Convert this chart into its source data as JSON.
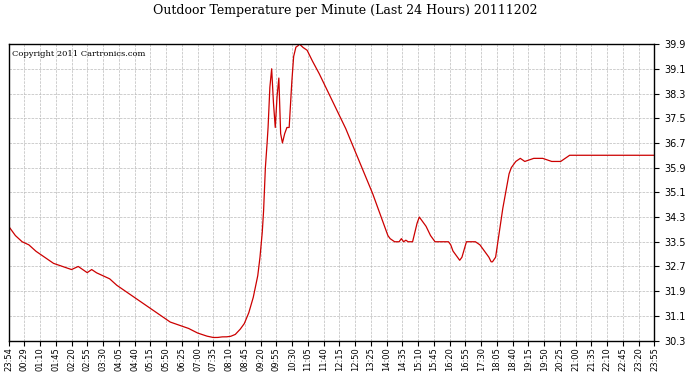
{
  "title": "Outdoor Temperature per Minute (Last 24 Hours) 20111202",
  "copyright_text": "Copyright 2011 Cartronics.com",
  "line_color": "#cc0000",
  "bg_color": "#ffffff",
  "grid_color": "#bbbbbb",
  "y_min": 30.3,
  "y_max": 39.9,
  "y_ticks": [
    30.3,
    31.1,
    31.9,
    32.7,
    33.5,
    34.3,
    35.1,
    35.9,
    36.7,
    37.5,
    38.3,
    39.1,
    39.9
  ],
  "x_tick_labels": [
    "23:54",
    "00:29",
    "01:10",
    "01:45",
    "02:20",
    "02:55",
    "03:30",
    "04:05",
    "04:40",
    "05:15",
    "05:50",
    "06:25",
    "07:00",
    "07:35",
    "08:10",
    "08:45",
    "09:20",
    "09:55",
    "10:30",
    "11:05",
    "11:40",
    "12:15",
    "12:50",
    "13:25",
    "14:00",
    "14:35",
    "15:10",
    "15:45",
    "16:20",
    "16:55",
    "17:30",
    "18:05",
    "18:40",
    "19:15",
    "19:50",
    "20:25",
    "21:00",
    "21:35",
    "22:10",
    "22:45",
    "23:20",
    "23:55"
  ],
  "key_points": [
    [
      0,
      34.0
    ],
    [
      15,
      33.7
    ],
    [
      30,
      33.5
    ],
    [
      45,
      33.4
    ],
    [
      60,
      33.2
    ],
    [
      80,
      33.0
    ],
    [
      100,
      32.8
    ],
    [
      120,
      32.7
    ],
    [
      140,
      32.6
    ],
    [
      155,
      32.7
    ],
    [
      165,
      32.6
    ],
    [
      175,
      32.5
    ],
    [
      185,
      32.6
    ],
    [
      195,
      32.5
    ],
    [
      210,
      32.4
    ],
    [
      225,
      32.3
    ],
    [
      240,
      32.1
    ],
    [
      260,
      31.9
    ],
    [
      280,
      31.7
    ],
    [
      300,
      31.5
    ],
    [
      320,
      31.3
    ],
    [
      340,
      31.1
    ],
    [
      360,
      30.9
    ],
    [
      380,
      30.8
    ],
    [
      400,
      30.7
    ],
    [
      420,
      30.55
    ],
    [
      440,
      30.45
    ],
    [
      455,
      30.4
    ],
    [
      465,
      30.4
    ],
    [
      475,
      30.42
    ],
    [
      485,
      30.42
    ],
    [
      495,
      30.44
    ],
    [
      505,
      30.5
    ],
    [
      515,
      30.65
    ],
    [
      525,
      30.85
    ],
    [
      535,
      31.2
    ],
    [
      545,
      31.7
    ],
    [
      555,
      32.4
    ],
    [
      560,
      33.0
    ],
    [
      565,
      33.8
    ],
    [
      568,
      34.5
    ],
    [
      572,
      35.9
    ],
    [
      575,
      36.5
    ],
    [
      578,
      37.2
    ],
    [
      582,
      38.5
    ],
    [
      586,
      39.1
    ],
    [
      590,
      38.0
    ],
    [
      594,
      37.2
    ],
    [
      598,
      38.2
    ],
    [
      602,
      38.8
    ],
    [
      606,
      37.0
    ],
    [
      610,
      36.7
    ],
    [
      615,
      37.0
    ],
    [
      620,
      37.2
    ],
    [
      625,
      37.2
    ],
    [
      630,
      38.5
    ],
    [
      635,
      39.5
    ],
    [
      640,
      39.8
    ],
    [
      645,
      39.85
    ],
    [
      648,
      39.9
    ],
    [
      655,
      39.8
    ],
    [
      665,
      39.7
    ],
    [
      675,
      39.4
    ],
    [
      690,
      39.0
    ],
    [
      710,
      38.4
    ],
    [
      730,
      37.8
    ],
    [
      750,
      37.2
    ],
    [
      770,
      36.5
    ],
    [
      790,
      35.8
    ],
    [
      810,
      35.1
    ],
    [
      825,
      34.5
    ],
    [
      835,
      34.1
    ],
    [
      840,
      33.9
    ],
    [
      845,
      33.7
    ],
    [
      850,
      33.6
    ],
    [
      855,
      33.55
    ],
    [
      860,
      33.5
    ],
    [
      865,
      33.5
    ],
    [
      870,
      33.5
    ],
    [
      875,
      33.6
    ],
    [
      880,
      33.5
    ],
    [
      885,
      33.55
    ],
    [
      890,
      33.5
    ],
    [
      895,
      33.5
    ],
    [
      900,
      33.5
    ],
    [
      910,
      34.1
    ],
    [
      915,
      34.3
    ],
    [
      920,
      34.2
    ],
    [
      930,
      34.0
    ],
    [
      940,
      33.7
    ],
    [
      950,
      33.5
    ],
    [
      960,
      33.5
    ],
    [
      970,
      33.5
    ],
    [
      980,
      33.5
    ],
    [
      985,
      33.4
    ],
    [
      990,
      33.2
    ],
    [
      1000,
      33.0
    ],
    [
      1005,
      32.9
    ],
    [
      1010,
      33.0
    ],
    [
      1020,
      33.5
    ],
    [
      1030,
      33.5
    ],
    [
      1040,
      33.5
    ],
    [
      1050,
      33.4
    ],
    [
      1060,
      33.2
    ],
    [
      1070,
      33.0
    ],
    [
      1075,
      32.85
    ],
    [
      1078,
      32.85
    ],
    [
      1085,
      33.0
    ],
    [
      1090,
      33.5
    ],
    [
      1100,
      34.5
    ],
    [
      1110,
      35.3
    ],
    [
      1115,
      35.7
    ],
    [
      1120,
      35.9
    ],
    [
      1125,
      36.0
    ],
    [
      1130,
      36.1
    ],
    [
      1140,
      36.2
    ],
    [
      1150,
      36.1
    ],
    [
      1160,
      36.15
    ],
    [
      1170,
      36.2
    ],
    [
      1180,
      36.2
    ],
    [
      1190,
      36.2
    ],
    [
      1200,
      36.15
    ],
    [
      1210,
      36.1
    ],
    [
      1220,
      36.1
    ],
    [
      1230,
      36.1
    ],
    [
      1240,
      36.2
    ],
    [
      1250,
      36.3
    ],
    [
      1260,
      36.3
    ],
    [
      1270,
      36.3
    ],
    [
      1280,
      36.3
    ],
    [
      1290,
      36.3
    ],
    [
      1300,
      36.3
    ],
    [
      1310,
      36.3
    ],
    [
      1320,
      36.3
    ],
    [
      1330,
      36.3
    ],
    [
      1340,
      36.3
    ],
    [
      1350,
      36.3
    ],
    [
      1360,
      36.3
    ],
    [
      1370,
      36.3
    ],
    [
      1380,
      36.3
    ],
    [
      1390,
      36.3
    ],
    [
      1400,
      36.3
    ],
    [
      1410,
      36.3
    ],
    [
      1420,
      36.3
    ],
    [
      1430,
      36.3
    ],
    [
      1439,
      36.3
    ]
  ]
}
